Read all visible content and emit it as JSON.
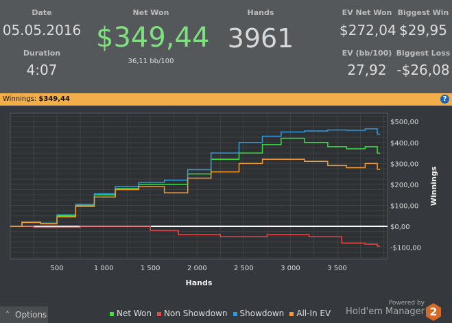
{
  "stats": {
    "date_label": "Date",
    "date": "05.05.2016",
    "duration_label": "Duration",
    "duration": "4:07",
    "net_won_label": "Net Won",
    "net_won": "$349,44",
    "bb100": "36,11 bb/100",
    "hands_label": "Hands",
    "hands": "3961",
    "ev_net_won_label": "EV Net Won",
    "ev_net_won": "$272,04",
    "biggest_win_label": "Biggest Win",
    "biggest_win": "$29,95",
    "ev_bb_label": "EV (bb/100)",
    "ev_bb": "27,92",
    "biggest_loss_label": "Biggest Loss",
    "biggest_loss": "-$26,08"
  },
  "bar": {
    "label": "Winnings:",
    "value": "$349,44",
    "help": "?"
  },
  "options_label": "Options",
  "powered_by": "Powered by",
  "brand": "Hold'em Manager",
  "brand_num": "2",
  "chart_data": {
    "type": "line",
    "xlabel": "Hands",
    "ylabel": "Winnings",
    "xlim": [
      0,
      4040
    ],
    "ylim": [
      -157,
      540
    ],
    "xticks": [
      500,
      1000,
      1500,
      2000,
      2500,
      3000,
      3500
    ],
    "xtick_labels": [
      "500",
      "1 000",
      "1 500",
      "2 000",
      "2 500",
      "3 000",
      "3 500"
    ],
    "yticks": [
      -100,
      0,
      100,
      200,
      300,
      400,
      500
    ],
    "ytick_labels": [
      "-$100,00",
      "$0,00",
      "$100,00",
      "$200,00",
      "$300,00",
      "$400,00",
      "$500,00"
    ],
    "series": [
      {
        "name": "Net Won",
        "color": "#35e33a",
        "x": [
          0,
          250,
          400,
          600,
          800,
          1000,
          1250,
          1500,
          1800,
          2000,
          2300,
          2600,
          2800,
          3000,
          3300,
          3500,
          3700,
          3900,
          3961
        ],
        "y": [
          0,
          20,
          15,
          50,
          100,
          150,
          180,
          200,
          200,
          250,
          320,
          350,
          390,
          420,
          400,
          380,
          370,
          380,
          349
        ]
      },
      {
        "name": "Non Showdown",
        "color": "#e84848",
        "x": [
          0,
          500,
          1000,
          1400,
          1600,
          2000,
          2500,
          3000,
          3400,
          3700,
          3900,
          3961
        ],
        "y": [
          0,
          -5,
          0,
          0,
          -20,
          -40,
          -50,
          -40,
          -50,
          -80,
          -85,
          -95
        ]
      },
      {
        "name": "Showdown",
        "color": "#2f9be0",
        "x": [
          0,
          250,
          400,
          600,
          800,
          1000,
          1250,
          1500,
          1800,
          2000,
          2300,
          2600,
          2800,
          3000,
          3300,
          3500,
          3700,
          3900,
          3961
        ],
        "y": [
          0,
          20,
          15,
          55,
          105,
          155,
          190,
          210,
          220,
          270,
          350,
          400,
          430,
          450,
          455,
          460,
          458,
          465,
          440
        ]
      },
      {
        "name": "All-In EV",
        "color": "#f59a2e",
        "x": [
          0,
          250,
          400,
          600,
          800,
          1000,
          1250,
          1500,
          1800,
          2000,
          2300,
          2600,
          2800,
          3000,
          3300,
          3500,
          3700,
          3900,
          3961
        ],
        "y": [
          0,
          18,
          12,
          45,
          95,
          140,
          175,
          190,
          160,
          230,
          260,
          300,
          320,
          320,
          310,
          290,
          280,
          300,
          272
        ]
      }
    ]
  }
}
